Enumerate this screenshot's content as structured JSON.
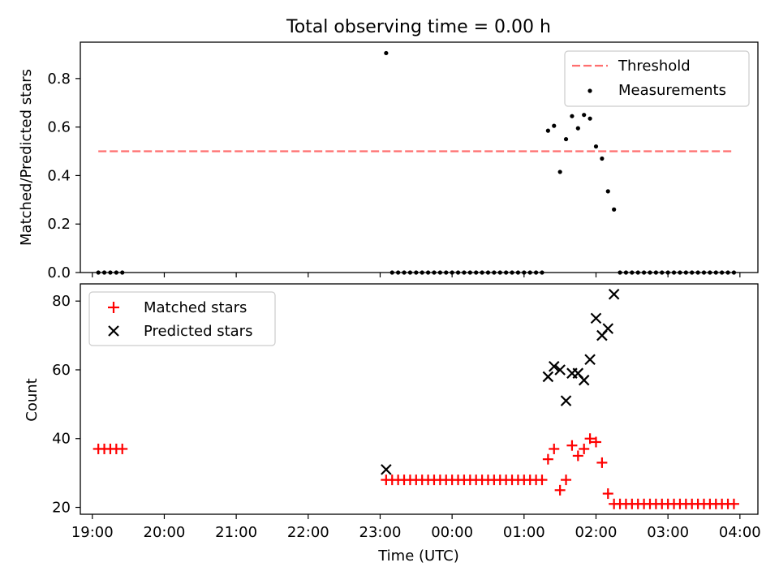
{
  "chart_data": [
    {
      "type": "scatter",
      "title": "Total observing time = 0.00 h",
      "xlabel": "",
      "ylabel": "Matched/Predicted stars",
      "xlim": [
        "18:50",
        "04:15"
      ],
      "ylim": [
        0,
        0.95
      ],
      "yticks": [
        0.0,
        0.2,
        0.4,
        0.6,
        0.8
      ],
      "ytick_labels": [
        "0.0",
        "0.2",
        "0.4",
        "0.6",
        "0.8"
      ],
      "legend_position": "upper right",
      "colors": {
        "threshold": "#ff6f6f",
        "measurements": "#000000"
      },
      "series": [
        {
          "name": "Threshold",
          "style": "dashed line",
          "x": [
            "19:05",
            "03:55"
          ],
          "y": [
            0.5,
            0.5
          ]
        },
        {
          "name": "Measurements",
          "style": "point",
          "x": [
            "19:05",
            "19:10",
            "19:15",
            "19:20",
            "19:25",
            "23:05",
            "23:10",
            "23:15",
            "23:20",
            "23:25",
            "23:30",
            "23:35",
            "23:40",
            "23:45",
            "23:50",
            "23:55",
            "00:00",
            "00:05",
            "00:10",
            "00:15",
            "00:20",
            "00:25",
            "00:30",
            "00:35",
            "00:40",
            "00:45",
            "00:50",
            "00:55",
            "01:00",
            "01:05",
            "01:10",
            "01:15",
            "01:20",
            "01:25",
            "01:30",
            "01:35",
            "01:40",
            "01:45",
            "01:50",
            "01:55",
            "02:00",
            "02:05",
            "02:10",
            "02:15",
            "02:20",
            "02:25",
            "02:30",
            "02:35",
            "02:40",
            "02:45",
            "02:50",
            "02:55",
            "03:00",
            "03:05",
            "03:10",
            "03:15",
            "03:20",
            "03:25",
            "03:30",
            "03:35",
            "03:40",
            "03:45",
            "03:50",
            "03:55"
          ],
          "y": [
            0,
            0,
            0,
            0,
            0,
            0.905,
            0,
            0,
            0,
            0,
            0,
            0,
            0,
            0,
            0,
            0,
            0,
            0,
            0,
            0,
            0,
            0,
            0,
            0,
            0,
            0,
            0,
            0,
            0,
            0,
            0,
            0,
            0.585,
            0.605,
            0.415,
            0.55,
            0.645,
            0.595,
            0.65,
            0.635,
            0.52,
            0.47,
            0.335,
            0.26,
            0,
            0,
            0,
            0,
            0,
            0,
            0,
            0,
            0,
            0,
            0,
            0,
            0,
            0,
            0,
            0,
            0,
            0,
            0,
            0
          ]
        }
      ]
    },
    {
      "type": "scatter",
      "title": "",
      "xlabel": "Time (UTC)",
      "ylabel": "Count",
      "xlim": [
        "18:50",
        "04:15"
      ],
      "ylim": [
        18,
        85
      ],
      "yticks": [
        20,
        40,
        60,
        80
      ],
      "ytick_labels": [
        "20",
        "40",
        "60",
        "80"
      ],
      "xticks": [
        "19:00",
        "20:00",
        "21:00",
        "22:00",
        "23:00",
        "00:00",
        "01:00",
        "02:00",
        "03:00",
        "04:00"
      ],
      "legend_position": "upper left",
      "colors": {
        "matched": "#ff0000",
        "predicted": "#000000"
      },
      "series": [
        {
          "name": "Matched stars",
          "marker": "+",
          "x": [
            "19:05",
            "19:10",
            "19:15",
            "19:20",
            "19:25",
            "23:05",
            "23:10",
            "23:15",
            "23:20",
            "23:25",
            "23:30",
            "23:35",
            "23:40",
            "23:45",
            "23:50",
            "23:55",
            "00:00",
            "00:05",
            "00:10",
            "00:15",
            "00:20",
            "00:25",
            "00:30",
            "00:35",
            "00:40",
            "00:45",
            "00:50",
            "00:55",
            "01:00",
            "01:05",
            "01:10",
            "01:15",
            "01:20",
            "01:25",
            "01:30",
            "01:35",
            "01:40",
            "01:45",
            "01:50",
            "01:55",
            "02:00",
            "02:05",
            "02:10",
            "02:15",
            "02:20",
            "02:25",
            "02:30",
            "02:35",
            "02:40",
            "02:45",
            "02:50",
            "02:55",
            "03:00",
            "03:05",
            "03:10",
            "03:15",
            "03:20",
            "03:25",
            "03:30",
            "03:35",
            "03:40",
            "03:45",
            "03:50",
            "03:55"
          ],
          "y": [
            37,
            37,
            37,
            37,
            37,
            28,
            28,
            28,
            28,
            28,
            28,
            28,
            28,
            28,
            28,
            28,
            28,
            28,
            28,
            28,
            28,
            28,
            28,
            28,
            28,
            28,
            28,
            28,
            28,
            28,
            28,
            28,
            34,
            37,
            25,
            28,
            38,
            35,
            37,
            40,
            39,
            33,
            24,
            21,
            21,
            21,
            21,
            21,
            21,
            21,
            21,
            21,
            21,
            21,
            21,
            21,
            21,
            21,
            21,
            21,
            21,
            21,
            21,
            21
          ]
        },
        {
          "name": "Predicted stars",
          "marker": "x",
          "x": [
            "23:05",
            "01:20",
            "01:25",
            "01:30",
            "01:35",
            "01:40",
            "01:45",
            "01:50",
            "01:55",
            "02:00",
            "02:05",
            "02:10",
            "02:15"
          ],
          "y": [
            31,
            58,
            61,
            60,
            51,
            59,
            59,
            57,
            63,
            75,
            70,
            72,
            82
          ]
        }
      ]
    }
  ]
}
